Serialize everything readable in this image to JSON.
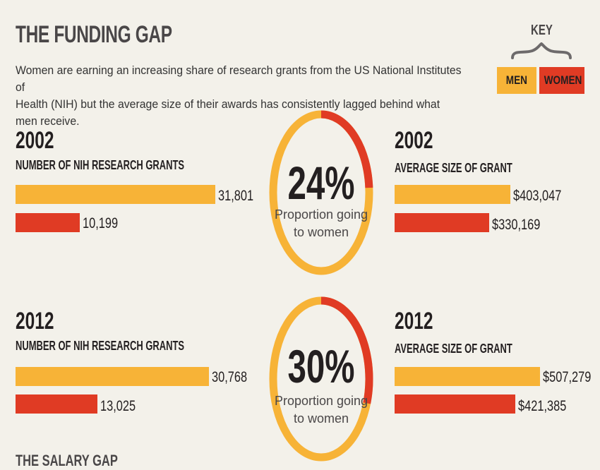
{
  "title": "THE FUNDING GAP",
  "intro_line1": "Women are earning an increasing share of research grants from the US National Institutes of",
  "intro_line2": "Health (NIH) but the average size of their awards has consistently lagged behind what men receive.",
  "key": {
    "title": "KEY",
    "men": "MEN",
    "women": "WOMEN"
  },
  "colors": {
    "men": "#f7b337",
    "women": "#e03b24",
    "background": "#f3f1ea"
  },
  "next_section_title": "THE SALARY GAP",
  "chart_data": [
    {
      "type": "bar",
      "panel": "2002-grants",
      "title": "2002",
      "subtitle": "NUMBER OF NIH RESEARCH GRANTS",
      "categories": [
        "Men",
        "Women"
      ],
      "values": [
        31801,
        10199
      ],
      "labels": [
        "31,801",
        "10,199"
      ]
    },
    {
      "type": "pie",
      "panel": "2002-share",
      "value_label": "24%",
      "caption_line1": "Proportion going",
      "caption_line2": "to women",
      "slices": [
        {
          "name": "Women",
          "value": 24
        },
        {
          "name": "Men",
          "value": 76
        }
      ]
    },
    {
      "type": "bar",
      "panel": "2002-size",
      "title": "2002",
      "subtitle": "AVERAGE SIZE OF GRANT",
      "categories": [
        "Men",
        "Women"
      ],
      "values": [
        403047,
        330169
      ],
      "labels": [
        "$403,047",
        "$330,169"
      ]
    },
    {
      "type": "bar",
      "panel": "2012-grants",
      "title": "2012",
      "subtitle": "NUMBER OF NIH RESEARCH GRANTS",
      "categories": [
        "Men",
        "Women"
      ],
      "values": [
        30768,
        13025
      ],
      "labels": [
        "30,768",
        "13,025"
      ]
    },
    {
      "type": "pie",
      "panel": "2012-share",
      "value_label": "30%",
      "caption_line1": "Proportion going",
      "caption_line2": "to women",
      "slices": [
        {
          "name": "Women",
          "value": 30
        },
        {
          "name": "Men",
          "value": 70
        }
      ]
    },
    {
      "type": "bar",
      "panel": "2012-size",
      "title": "2012",
      "subtitle": "AVERAGE SIZE OF GRANT",
      "categories": [
        "Men",
        "Women"
      ],
      "values": [
        507279,
        421385
      ],
      "labels": [
        "$507,279",
        "$421,385"
      ]
    }
  ]
}
